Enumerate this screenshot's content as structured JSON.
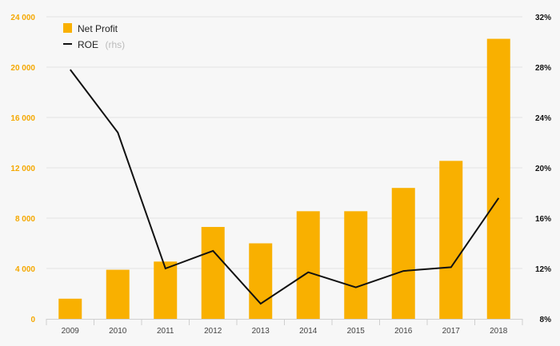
{
  "chart_data": {
    "type": "bar",
    "categories": [
      "2009",
      "2010",
      "2011",
      "2012",
      "2013",
      "2014",
      "2015",
      "2016",
      "2017",
      "2018"
    ],
    "series": [
      {
        "name": "Net Profit",
        "type": "bar",
        "axis": "left",
        "color": "#f9b000",
        "values": [
          1600,
          3900,
          4550,
          7300,
          6000,
          8550,
          8550,
          10400,
          12550,
          22250
        ]
      },
      {
        "name": "ROE",
        "name_suffix": "(rhs)",
        "type": "line",
        "axis": "right",
        "color": "#111111",
        "values": [
          27.8,
          22.8,
          12.0,
          13.4,
          9.2,
          11.7,
          10.5,
          11.8,
          12.1,
          17.6
        ]
      }
    ],
    "left_axis": {
      "ylim": [
        0,
        24000
      ],
      "ticks": [
        0,
        4000,
        8000,
        12000,
        16000,
        20000,
        24000
      ],
      "tick_labels": [
        "0",
        "4 000",
        "8 000",
        "12 000",
        "16 000",
        "20 000",
        "24 000"
      ],
      "color": "#f5a800"
    },
    "right_axis": {
      "ylim": [
        8,
        32
      ],
      "ticks": [
        8,
        12,
        16,
        20,
        24,
        28,
        32
      ],
      "tick_labels": [
        "8%",
        "12%",
        "16%",
        "20%",
        "24%",
        "28%",
        "32%"
      ],
      "color": "#111111"
    },
    "grid": true,
    "legend_position": "top-left"
  }
}
